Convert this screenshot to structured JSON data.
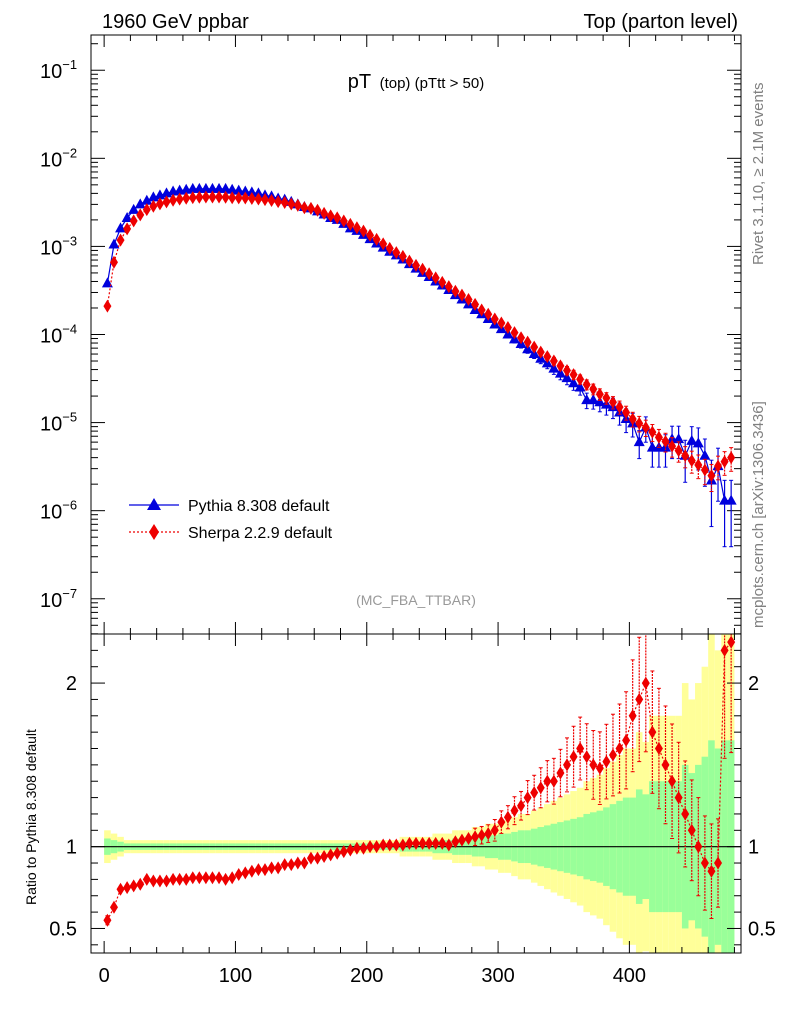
{
  "chart_data": {
    "type": "scatter",
    "header_left": "1960 GeV ppbar",
    "header_right": "Top (parton level)",
    "title_main": "pT",
    "title_sub": "(top) (pTtt > 50)",
    "analysis_tag": "(MC_FBA_TTBAR)",
    "side_label_top": "Rivet 3.1.10, ≥ 2.1M events",
    "side_label_bottom": "mcplots.cern.ch [arXiv:1306.3436]",
    "ratio_ylabel": "Ratio to Pythia 8.308 default",
    "xlim": [
      -10,
      485
    ],
    "xticks": [
      0,
      100,
      200,
      300,
      400
    ],
    "main_ylim_log10": [
      -7.4,
      -0.6
    ],
    "main_ytick_labels": [
      {
        "base": "10",
        "exp": "−1",
        "logv": -1
      },
      {
        "base": "10",
        "exp": "−2",
        "logv": -2
      },
      {
        "base": "10",
        "exp": "−3",
        "logv": -3
      },
      {
        "base": "10",
        "exp": "−4",
        "logv": -4
      },
      {
        "base": "10",
        "exp": "−5",
        "logv": -5
      },
      {
        "base": "10",
        "exp": "−6",
        "logv": -6
      },
      {
        "base": "10",
        "exp": "−7",
        "logv": -7
      }
    ],
    "ratio_ylim": [
      0.35,
      2.3
    ],
    "ratio_yticks": [
      {
        "label": "0.5",
        "v": 0.5
      },
      {
        "label": "1",
        "v": 1
      },
      {
        "label": "2",
        "v": 2
      }
    ],
    "x": [
      2.5,
      7.5,
      12.5,
      17.5,
      22.5,
      27.5,
      32.5,
      37.5,
      42.5,
      47.5,
      52.5,
      57.5,
      62.5,
      67.5,
      72.5,
      77.5,
      82.5,
      87.5,
      92.5,
      97.5,
      102.5,
      107.5,
      112.5,
      117.5,
      122.5,
      127.5,
      132.5,
      137.5,
      142.5,
      147.5,
      152.5,
      157.5,
      162.5,
      167.5,
      172.5,
      177.5,
      182.5,
      187.5,
      192.5,
      197.5,
      202.5,
      207.5,
      212.5,
      217.5,
      222.5,
      227.5,
      232.5,
      237.5,
      242.5,
      247.5,
      252.5,
      257.5,
      262.5,
      267.5,
      272.5,
      277.5,
      282.5,
      287.5,
      292.5,
      297.5,
      302.5,
      307.5,
      312.5,
      317.5,
      322.5,
      327.5,
      332.5,
      337.5,
      342.5,
      347.5,
      352.5,
      357.5,
      362.5,
      367.5,
      372.5,
      377.5,
      382.5,
      387.5,
      392.5,
      397.5,
      402.5,
      407.5,
      412.5,
      417.5,
      422.5,
      427.5,
      432.5,
      437.5,
      442.5,
      447.5,
      452.5,
      457.5,
      462.5,
      467.5,
      472.5,
      477.5
    ],
    "series": [
      {
        "name": "Pythia 8.308 default",
        "color": "#0000dd",
        "marker": "triangle",
        "values": [
          0.00038,
          0.00105,
          0.0016,
          0.0021,
          0.0026,
          0.003,
          0.0033,
          0.0036,
          0.0038,
          0.004,
          0.0042,
          0.0043,
          0.0044,
          0.0045,
          0.0045,
          0.0045,
          0.0045,
          0.0045,
          0.0045,
          0.0044,
          0.0043,
          0.0042,
          0.0041,
          0.004,
          0.0038,
          0.0037,
          0.0035,
          0.0034,
          0.0032,
          0.003,
          0.0028,
          0.0027,
          0.0025,
          0.0023,
          0.0021,
          0.002,
          0.0018,
          0.0016,
          0.0015,
          0.00135,
          0.00121,
          0.00108,
          0.00097,
          0.00087,
          0.00079,
          0.00071,
          0.00063,
          0.00056,
          0.0005,
          0.00045,
          0.0004,
          0.00036,
          0.00032,
          0.00028,
          0.00025,
          0.00022,
          0.00019,
          0.00017,
          0.00015,
          0.00013,
          0.000115,
          0.0001,
          8.8e-05,
          7.8e-05,
          6.8e-05,
          6e-05,
          5.3e-05,
          4.7e-05,
          4.1e-05,
          3.6e-05,
          3.2e-05,
          2.8e-05,
          2.5e-05,
          1.8e-05,
          1.8e-05,
          1.7e-05,
          1.6e-05,
          1.5e-05,
          1.3e-05,
          1.1e-05,
          9.8e-06,
          6e-06,
          8.8e-06,
          5.2e-06,
          5.2e-06,
          5.2e-06,
          6.5e-06,
          6.5e-06,
          4.2e-06,
          6.2e-06,
          5.8e-06,
          4.2e-06,
          2.2e-06,
          3.2e-06,
          1.3e-06,
          1.3e-06
        ],
        "rel_err": [
          0.04,
          0.03,
          0.02,
          0.02,
          0.02,
          0.02,
          0.02,
          0.02,
          0.02,
          0.02,
          0.02,
          0.02,
          0.02,
          0.02,
          0.02,
          0.02,
          0.02,
          0.02,
          0.02,
          0.02,
          0.02,
          0.02,
          0.02,
          0.02,
          0.02,
          0.02,
          0.02,
          0.02,
          0.02,
          0.02,
          0.02,
          0.02,
          0.02,
          0.02,
          0.02,
          0.02,
          0.02,
          0.02,
          0.02,
          0.02,
          0.02,
          0.02,
          0.02,
          0.02,
          0.03,
          0.03,
          0.03,
          0.03,
          0.03,
          0.03,
          0.04,
          0.04,
          0.04,
          0.05,
          0.05,
          0.05,
          0.06,
          0.06,
          0.07,
          0.07,
          0.08,
          0.08,
          0.09,
          0.1,
          0.1,
          0.11,
          0.12,
          0.13,
          0.14,
          0.15,
          0.16,
          0.17,
          0.18,
          0.2,
          0.21,
          0.22,
          0.24,
          0.26,
          0.28,
          0.3,
          0.3,
          0.35,
          0.32,
          0.4,
          0.4,
          0.4,
          0.4,
          0.4,
          0.5,
          0.45,
          0.5,
          0.55,
          0.7,
          0.6,
          0.7,
          0.7
        ]
      },
      {
        "name": "Sherpa 2.2.9 default",
        "color": "#ee0000",
        "marker": "diamond",
        "values": [
          0.00021,
          0.00066,
          0.00118,
          0.00158,
          0.00195,
          0.00228,
          0.00262,
          0.00286,
          0.00304,
          0.0032,
          0.00334,
          0.00344,
          0.00352,
          0.00358,
          0.00362,
          0.00364,
          0.00364,
          0.00364,
          0.00362,
          0.00357,
          0.00356,
          0.00354,
          0.0035,
          0.00345,
          0.0034,
          0.00332,
          0.00322,
          0.00315,
          0.00303,
          0.00292,
          0.00275,
          0.0027,
          0.00257,
          0.00237,
          0.00222,
          0.00211,
          0.00194,
          0.00178,
          0.00163,
          0.00149,
          0.00134,
          0.0012,
          0.00107,
          0.00095,
          0.00085,
          0.00077,
          0.00068,
          0.00061,
          0.00055,
          0.00049,
          0.00044,
          0.00039,
          0.00035,
          0.00031,
          0.00028,
          0.00025,
          0.00022,
          0.00019,
          0.00017,
          0.00015,
          0.000135,
          0.00012,
          0.000105,
          9.2e-05,
          8.2e-05,
          7.2e-05,
          6.3e-05,
          5.6e-05,
          5e-05,
          4.4e-05,
          3.9e-05,
          3.5e-05,
          3.1e-05,
          2.7e-05,
          2.4e-05,
          2.1e-05,
          1.9e-05,
          1.7e-05,
          1.5e-05,
          1.3e-05,
          1.1e-05,
          9.8e-06,
          8.8e-06,
          7.8e-06,
          6.8e-06,
          6.1e-06,
          5.4e-06,
          4.8e-06,
          4.2e-06,
          3.7e-06,
          3.3e-06,
          2.9e-06,
          2.5e-06,
          3.2e-06,
          3.6e-06,
          4e-06
        ],
        "rel_err": [
          0.05,
          0.03,
          0.02,
          0.02,
          0.02,
          0.02,
          0.02,
          0.02,
          0.02,
          0.02,
          0.02,
          0.02,
          0.02,
          0.02,
          0.02,
          0.02,
          0.02,
          0.02,
          0.02,
          0.02,
          0.02,
          0.02,
          0.02,
          0.02,
          0.02,
          0.02,
          0.02,
          0.02,
          0.02,
          0.02,
          0.02,
          0.02,
          0.02,
          0.02,
          0.02,
          0.02,
          0.02,
          0.02,
          0.02,
          0.02,
          0.02,
          0.02,
          0.02,
          0.02,
          0.02,
          0.03,
          0.03,
          0.03,
          0.03,
          0.03,
          0.03,
          0.03,
          0.04,
          0.04,
          0.04,
          0.04,
          0.05,
          0.05,
          0.05,
          0.06,
          0.06,
          0.06,
          0.07,
          0.07,
          0.08,
          0.08,
          0.09,
          0.09,
          0.1,
          0.1,
          0.11,
          0.12,
          0.12,
          0.13,
          0.14,
          0.15,
          0.15,
          0.16,
          0.17,
          0.18,
          0.19,
          0.2,
          0.21,
          0.22,
          0.23,
          0.24,
          0.25,
          0.26,
          0.27,
          0.28,
          0.3,
          0.32,
          0.34,
          0.3,
          0.3,
          0.3
        ]
      }
    ],
    "ratio_values": [
      0.55,
      0.63,
      0.74,
      0.75,
      0.76,
      0.77,
      0.8,
      0.79,
      0.79,
      0.79,
      0.8,
      0.8,
      0.8,
      0.81,
      0.81,
      0.81,
      0.81,
      0.81,
      0.8,
      0.81,
      0.83,
      0.84,
      0.85,
      0.86,
      0.86,
      0.87,
      0.87,
      0.89,
      0.89,
      0.9,
      0.9,
      0.93,
      0.93,
      0.94,
      0.95,
      0.96,
      0.97,
      0.98,
      0.99,
      0.99,
      1.0,
      1.0,
      1.01,
      1.01,
      1.01,
      1.01,
      1.02,
      1.02,
      1.02,
      1.02,
      1.02,
      1.02,
      1.01,
      1.03,
      1.04,
      1.05,
      1.06,
      1.07,
      1.08,
      1.1,
      1.15,
      1.18,
      1.22,
      1.25,
      1.3,
      1.33,
      1.36,
      1.4,
      1.4,
      1.45,
      1.5,
      1.55,
      1.6,
      1.55,
      1.5,
      1.48,
      1.52,
      1.56,
      1.6,
      1.65,
      1.8,
      1.9,
      2.0,
      1.7,
      1.6,
      1.5,
      1.4,
      1.3,
      1.2,
      1.1,
      1.0,
      0.9,
      0.85,
      0.9,
      2.2,
      2.25
    ],
    "band_inner_half": [
      0.05,
      0.04,
      0.03,
      0.02,
      0.02,
      0.02,
      0.02,
      0.02,
      0.02,
      0.02,
      0.02,
      0.02,
      0.02,
      0.02,
      0.02,
      0.02,
      0.02,
      0.02,
      0.02,
      0.02,
      0.02,
      0.02,
      0.02,
      0.02,
      0.02,
      0.02,
      0.02,
      0.02,
      0.02,
      0.02,
      0.02,
      0.02,
      0.02,
      0.02,
      0.02,
      0.02,
      0.02,
      0.02,
      0.02,
      0.02,
      0.02,
      0.02,
      0.02,
      0.02,
      0.02,
      0.03,
      0.03,
      0.03,
      0.03,
      0.03,
      0.04,
      0.04,
      0.04,
      0.05,
      0.05,
      0.05,
      0.06,
      0.06,
      0.07,
      0.07,
      0.08,
      0.08,
      0.09,
      0.1,
      0.1,
      0.11,
      0.12,
      0.13,
      0.14,
      0.15,
      0.16,
      0.17,
      0.18,
      0.2,
      0.21,
      0.22,
      0.24,
      0.26,
      0.28,
      0.3,
      0.3,
      0.35,
      0.32,
      0.4,
      0.4,
      0.4,
      0.4,
      0.4,
      0.5,
      0.45,
      0.5,
      0.55,
      0.65,
      0.6,
      0.65,
      0.65
    ],
    "legend": [
      "Pythia 8.308 default",
      "Sherpa 2.2.9 default"
    ]
  }
}
